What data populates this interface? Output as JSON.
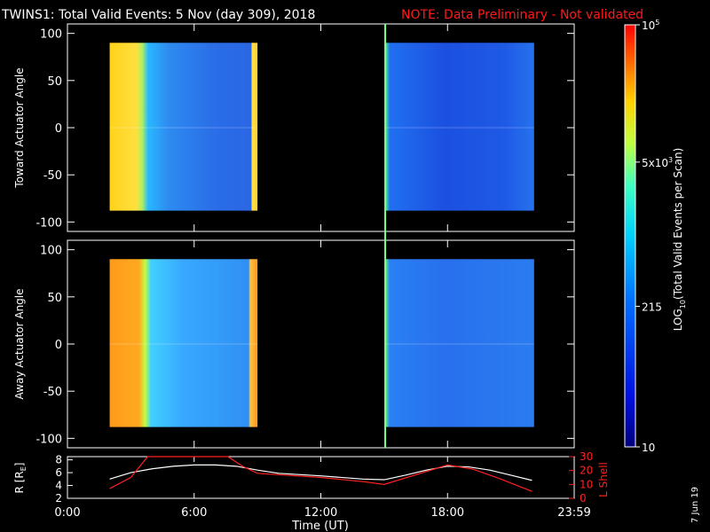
{
  "header": {
    "title": "TWINS1: Total Valid Events:  5 Nov (day 309), 2018",
    "note": "NOTE: Data Preliminary - Not validated"
  },
  "colors": {
    "background": "#000000",
    "axes": "#ffffff",
    "note": "#ff1a1a",
    "marker": "#7dff8f",
    "lshell": "#ff2020",
    "radius": "#ffffff"
  },
  "chart_data": [
    {
      "type": "heatmap",
      "name": "top-spectrogram",
      "ylabel": "Toward Actuator Angle",
      "ylim": [
        -110,
        110
      ],
      "yticks": [
        100,
        50,
        0,
        -50,
        -100
      ],
      "xlim": [
        0,
        24
      ],
      "data_blocks": [
        {
          "start_hr": 2.0,
          "end_hr": 9.0,
          "angle_range": [
            -88,
            90
          ]
        },
        {
          "start_hr": 15.05,
          "end_hr": 22.1,
          "angle_range": [
            -88,
            90
          ]
        }
      ]
    },
    {
      "type": "heatmap",
      "name": "bottom-spectrogram",
      "ylabel": "Away Actuator Angle",
      "ylim": [
        -110,
        110
      ],
      "yticks": [
        100,
        50,
        0,
        -50,
        -100
      ],
      "xlim": [
        0,
        24
      ],
      "data_blocks": [
        {
          "start_hr": 2.0,
          "end_hr": 9.0,
          "angle_range": [
            -88,
            90
          ]
        },
        {
          "start_hr": 15.05,
          "end_hr": 22.1,
          "angle_range": [
            -88,
            90
          ]
        }
      ]
    },
    {
      "type": "line",
      "name": "orbit-panel",
      "ylabel_left": "R [RE]",
      "ylabel_left_main": "R [R",
      "ylabel_left_sub": "E",
      "ylabel_left_end": "]",
      "ylabel_right": "L Shell",
      "xlabel": "Time (UT)",
      "xticks": [
        "0:00",
        "6:00",
        "12:00",
        "18:00",
        "23:59"
      ],
      "xtick_hours": [
        0,
        6,
        12,
        18,
        24
      ],
      "ylim_left": [
        2,
        8.5
      ],
      "yticks_left": [
        "8",
        "6",
        "4",
        "2"
      ],
      "yticks_left_values": [
        8,
        6,
        4,
        2
      ],
      "ylim_right": [
        0,
        30
      ],
      "yticks_right": [
        "30",
        "20",
        "10",
        "0"
      ],
      "yticks_right_values": [
        30,
        20,
        10,
        0
      ],
      "series": [
        {
          "name": "R",
          "x": [
            2.0,
            3.0,
            4.0,
            5.0,
            6.0,
            7.0,
            8.0,
            9.0,
            10.0,
            12.0,
            14.0,
            15.0,
            16.0,
            17.0,
            18.0,
            19.0,
            20.0,
            21.0,
            22.0
          ],
          "y": [
            5.0,
            6.0,
            6.6,
            7.0,
            7.2,
            7.2,
            7.0,
            6.4,
            5.9,
            5.5,
            5.0,
            4.9,
            5.6,
            6.4,
            7.0,
            6.9,
            6.4,
            5.6,
            4.8
          ]
        },
        {
          "name": "L Shell",
          "x": [
            2.0,
            3.0,
            3.8,
            7.6,
            8.3,
            9.0,
            12.0,
            14.0,
            15.0,
            16.5,
            18.0,
            19.2,
            20.5,
            22.0
          ],
          "y": [
            7,
            15,
            30,
            30,
            23,
            18,
            15,
            12,
            10,
            17,
            24,
            21,
            14,
            5
          ]
        }
      ]
    },
    {
      "type": "heatmap",
      "name": "colorbar",
      "scale": "log",
      "label_main": "LOG",
      "label_sub": "10",
      "label_rest": "(Total Valid Events per Scan)",
      "range": [
        10,
        100000
      ],
      "ticks": [
        {
          "value": 100000,
          "label_main": "10",
          "label_sup": "5"
        },
        {
          "value": 5000,
          "label_main": "5x10",
          "label_sup": "3"
        },
        {
          "value": 215,
          "label_main": "215",
          "label_sup": ""
        },
        {
          "value": 10,
          "label_main": "10",
          "label_sup": ""
        }
      ]
    }
  ],
  "marker_hour": 15.05,
  "footer": {
    "date": "7 Jun 19"
  }
}
